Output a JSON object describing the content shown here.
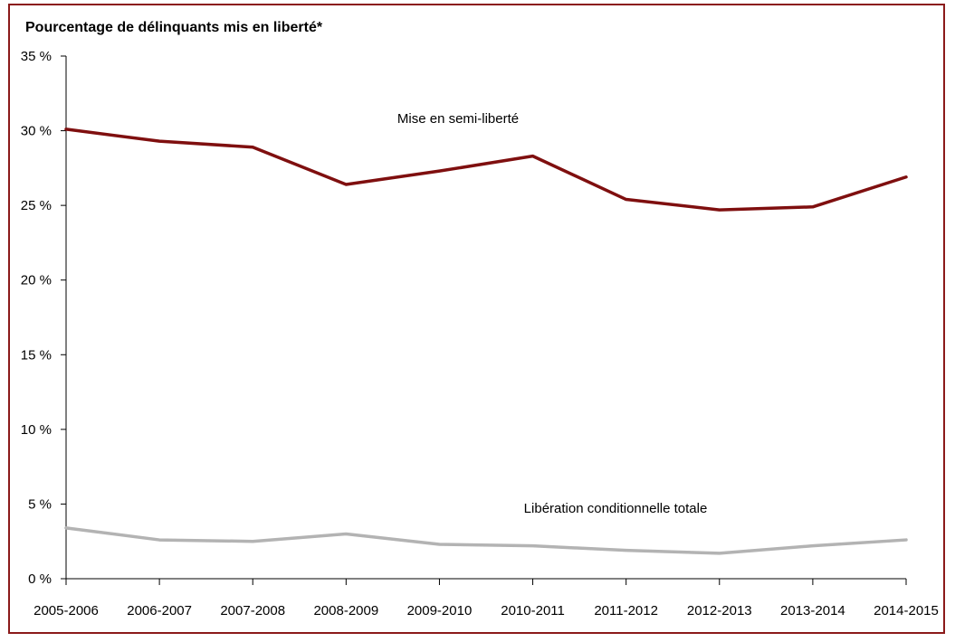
{
  "chart_data": {
    "type": "line",
    "ylabel": "Pourcentage de délinquants mis en liberté*",
    "categories": [
      "2005-2006",
      "2006-2007",
      "2007-2008",
      "2008-2009",
      "2009-2010",
      "2010-2011",
      "2011-2012",
      "2012-2013",
      "2013-2014",
      "2014-2015"
    ],
    "ylim": [
      0,
      35
    ],
    "yticks": [
      0,
      5,
      10,
      15,
      20,
      25,
      30,
      35
    ],
    "ytick_labels": [
      "0 %",
      "5 %",
      "10 %",
      "15 %",
      "20 %",
      "25 %",
      "30 %",
      "35 %"
    ],
    "grid": false,
    "series": [
      {
        "name": "Mise en semi-liberté",
        "color": "#7f0f0f",
        "values": [
          30.1,
          29.3,
          28.9,
          26.4,
          27.3,
          28.3,
          25.4,
          24.7,
          24.9,
          26.9
        ]
      },
      {
        "name": "Libération conditionnelle totale",
        "color": "#b3b3b3",
        "values": [
          3.4,
          2.6,
          2.5,
          3.0,
          2.3,
          2.2,
          1.9,
          1.7,
          2.2,
          2.6
        ]
      }
    ]
  }
}
